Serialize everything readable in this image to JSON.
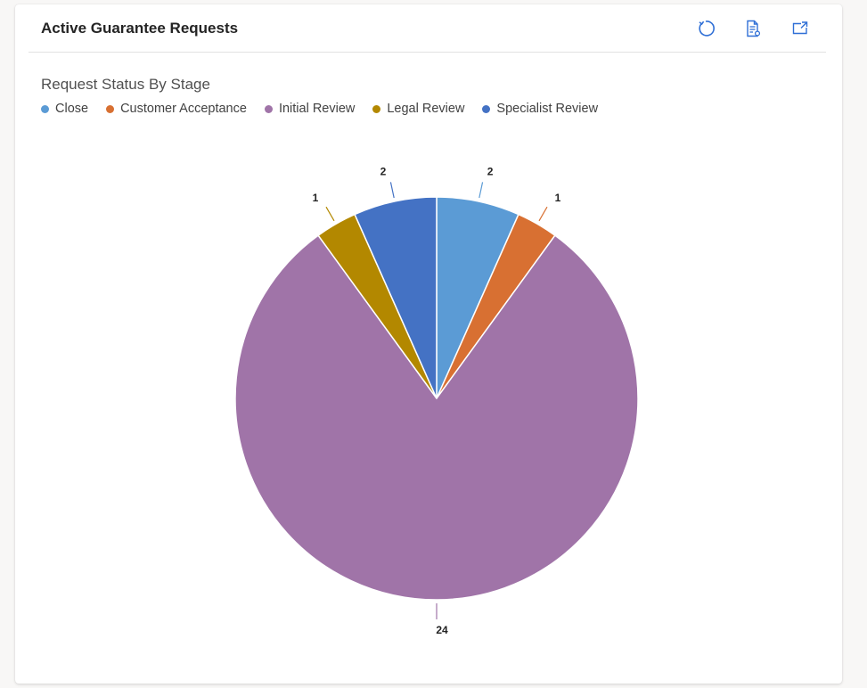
{
  "card": {
    "title": "Active Guarantee Requests",
    "icons": [
      "refresh-icon",
      "view-records-icon",
      "expand-chart-icon"
    ]
  },
  "chart_data": {
    "type": "pie",
    "title": "Request Status By Stage",
    "categories": [
      "Close",
      "Customer Acceptance",
      "Initial Review",
      "Legal Review",
      "Specialist Review"
    ],
    "values": [
      2,
      1,
      24,
      1,
      2
    ],
    "colors": [
      "#5b9bd5",
      "#d87032",
      "#a074a8",
      "#b38800",
      "#4472c4"
    ],
    "legend_position": "top-left",
    "data_labels": [
      "2",
      "1",
      "24",
      "1",
      "2"
    ]
  }
}
